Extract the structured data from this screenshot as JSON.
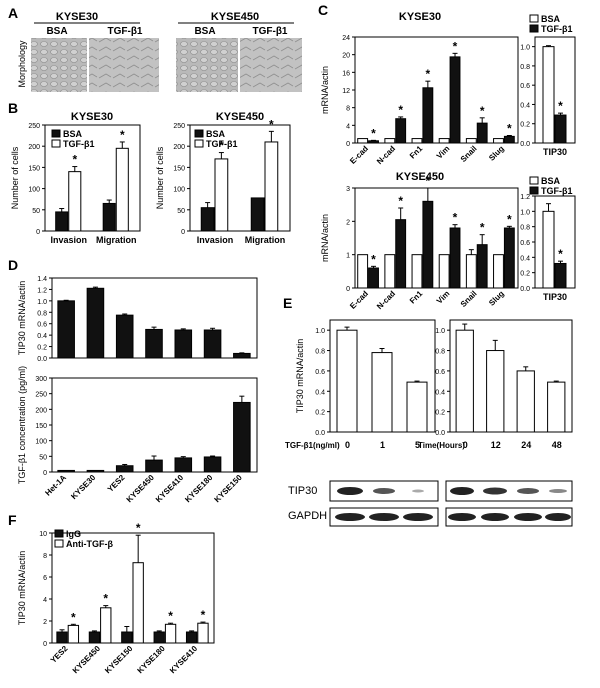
{
  "panels": {
    "A": "A",
    "B": "B",
    "C": "C",
    "D": "D",
    "E": "E",
    "F": "F"
  },
  "colors": {
    "black": "#111111",
    "white": "#ffffff",
    "frame": "#000000"
  },
  "panelA": {
    "morphology_label": "Morphology",
    "cell_lines": [
      "KYSE30",
      "KYSE450"
    ],
    "treatments": [
      "BSA",
      "TGF-β1"
    ]
  },
  "legend_bsa": "BSA",
  "legend_tgf": "TGF-β1",
  "star": "*",
  "chart_data": [
    {
      "id": "B1",
      "type": "bar",
      "title": "KYSE30",
      "ylabel": "Number of cells",
      "categories": [
        "Invasion",
        "Migration"
      ],
      "ylim": [
        0,
        250
      ],
      "yticks": [
        "0",
        "50",
        "100",
        "150",
        "200",
        "250"
      ],
      "series": [
        {
          "name": "BSA",
          "values": [
            45,
            65
          ],
          "errors": [
            8,
            8
          ]
        },
        {
          "name": "TGF-β1",
          "values": [
            140,
            195
          ],
          "errors": [
            12,
            15
          ]
        }
      ],
      "stars": [
        false,
        true,
        false,
        true
      ]
    },
    {
      "id": "B2",
      "type": "bar",
      "title": "KYSE450",
      "ylabel": "Number of cells",
      "categories": [
        "Invasion",
        "Migration"
      ],
      "ylim": [
        0,
        250
      ],
      "yticks": [
        "0",
        "50",
        "100",
        "150",
        "200",
        "250"
      ],
      "series": [
        {
          "name": "BSA",
          "values": [
            55,
            78
          ],
          "errors": [
            12,
            0
          ]
        },
        {
          "name": "TGF-β1",
          "values": [
            170,
            210
          ],
          "errors": [
            15,
            25
          ]
        }
      ],
      "stars": [
        false,
        true,
        false,
        true
      ]
    },
    {
      "id": "C1",
      "type": "bar",
      "title": "KYSE30",
      "ylabel": "mRNA/actin",
      "categories": [
        "E-cad",
        "N-cad",
        "Fn1",
        "Vim",
        "Snail",
        "Slug"
      ],
      "yticks": [
        "0",
        "4",
        "8",
        "12",
        "16",
        "20",
        "24"
      ],
      "ytick_label_top": "24",
      "series": [
        {
          "name": "BSA",
          "values": [
            1,
            1,
            1,
            1,
            1,
            1
          ],
          "errors": [
            0,
            0,
            0,
            0,
            0,
            0
          ]
        },
        {
          "name": "TGF-β1",
          "values": [
            0.5,
            5.5,
            12.5,
            19.5,
            4.5,
            1.5
          ],
          "errors": [
            0.1,
            0.4,
            1.5,
            0.8,
            1.2,
            0.2
          ]
        }
      ],
      "stars": [
        false,
        true,
        false,
        true,
        false,
        true,
        false,
        true,
        false,
        true,
        false,
        true
      ]
    },
    {
      "id": "C1b",
      "type": "bar",
      "ylabel": "",
      "categories": [
        "TIP30"
      ],
      "ylim": [
        0,
        1.1
      ],
      "yticks": [
        "0.0",
        "0.2",
        "0.4",
        "0.6",
        "0.8",
        "1.0"
      ],
      "series": [
        {
          "name": "BSA",
          "values": [
            1.0
          ],
          "errors": [
            0.01
          ]
        },
        {
          "name": "TGF-β1",
          "values": [
            0.29
          ],
          "errors": [
            0.02
          ]
        }
      ],
      "stars": [
        false,
        true
      ]
    },
    {
      "id": "C2",
      "type": "bar",
      "title": "KYSE450",
      "ylabel": "mRNA/actin",
      "categories": [
        "E-cad",
        "N-cad",
        "Fn1",
        "Vim",
        "Snail",
        "Slug"
      ],
      "ylim": [
        0,
        3
      ],
      "yticks": [
        "0",
        "1",
        "2",
        "3"
      ],
      "series": [
        {
          "name": "BSA",
          "values": [
            1,
            1,
            1,
            1,
            1,
            1
          ],
          "errors": [
            0,
            0,
            0,
            0,
            0.15,
            0
          ]
        },
        {
          "name": "TGF-β1",
          "values": [
            0.6,
            2.05,
            2.6,
            1.8,
            1.3,
            1.8
          ],
          "errors": [
            0.05,
            0.35,
            0.4,
            0.1,
            0.3,
            0.05
          ]
        }
      ],
      "stars": [
        false,
        true,
        false,
        true,
        false,
        true,
        false,
        true,
        false,
        true,
        false,
        true
      ]
    },
    {
      "id": "C2b",
      "type": "bar",
      "ylabel": "",
      "categories": [
        "TIP30"
      ],
      "ylim": [
        0,
        1.2
      ],
      "yticks": [
        "0.0",
        "0.2",
        "0.4",
        "0.6",
        "0.8",
        "1.0",
        "1.2"
      ],
      "series": [
        {
          "name": "BSA",
          "values": [
            1.0
          ],
          "errors": [
            0.1
          ]
        },
        {
          "name": "TGF-β1",
          "values": [
            0.32
          ],
          "errors": [
            0.03
          ]
        }
      ],
      "stars": [
        false,
        true
      ]
    },
    {
      "id": "D1",
      "type": "bar",
      "ylabel": "TIP30 mRNA/actin",
      "categories": [
        "Het-1A",
        "KYSE30",
        "YES2",
        "KYSE450",
        "KYSE410",
        "KYSE180",
        "KYSE150"
      ],
      "ylim": [
        0,
        1.4
      ],
      "yticks": [
        "0.0",
        "0.2",
        "0.4",
        "0.6",
        "0.8",
        "1.0",
        "1.2",
        "1.4"
      ],
      "series": [
        {
          "name": "",
          "values": [
            1.0,
            1.22,
            0.75,
            0.5,
            0.49,
            0.49,
            0.08
          ],
          "errors": [
            0.01,
            0.02,
            0.02,
            0.04,
            0.02,
            0.03,
            0.01
          ]
        }
      ]
    },
    {
      "id": "D2",
      "type": "bar",
      "ylabel": "TGF-β1 concentration (pg/ml)",
      "categories": [
        "Het-1A",
        "KYSE30",
        "YES2",
        "KYSE450",
        "KYSE410",
        "KYSE180",
        "KYSE150"
      ],
      "ylim": [
        0,
        300
      ],
      "yticks": [
        "0",
        "50",
        "100",
        "150",
        "200",
        "250",
        "300"
      ],
      "series": [
        {
          "name": "",
          "values": [
            5,
            5,
            20,
            38,
            45,
            48,
            222
          ],
          "errors": [
            0,
            0,
            4,
            13,
            4,
            3,
            20
          ]
        }
      ]
    },
    {
      "id": "E1",
      "type": "bar",
      "ylabel": "TIP30 mRNA/actin",
      "xlabel": "TGF-β1(ng/ml)",
      "categories": [
        "0",
        "1",
        "5"
      ],
      "ylim": [
        0,
        1.1
      ],
      "yticks": [
        "0.0",
        "0.2",
        "0.4",
        "0.6",
        "0.8",
        "1.0"
      ],
      "series": [
        {
          "name": "",
          "values": [
            1.0,
            0.78,
            0.49
          ],
          "errors": [
            0.03,
            0.04,
            0.01
          ]
        }
      ]
    },
    {
      "id": "E2",
      "type": "bar",
      "ylabel": "",
      "xlabel": "Time(Hours)",
      "categories": [
        "0",
        "12",
        "24",
        "48"
      ],
      "ylim": [
        0,
        1.1
      ],
      "yticks": [
        "0.0",
        "0.2",
        "0.4",
        "0.6",
        "0.8",
        "1.0"
      ],
      "series": [
        {
          "name": "",
          "values": [
            1.0,
            0.8,
            0.6,
            0.49
          ],
          "errors": [
            0.06,
            0.1,
            0.04,
            0.01
          ]
        }
      ]
    },
    {
      "id": "F",
      "type": "bar",
      "ylabel": "TIP30 mRNA/actin",
      "categories": [
        "YES2",
        "KYSE450",
        "KYSE150",
        "KYSE180",
        "KYSE410"
      ],
      "ylim": [
        0,
        10
      ],
      "yticks": [
        "0",
        "2",
        "4",
        "6",
        "8",
        "10"
      ],
      "series": [
        {
          "name": "IgG",
          "values": [
            1,
            1,
            1,
            1,
            1
          ],
          "errors": [
            0.2,
            0.1,
            0.5,
            0.1,
            0.1
          ]
        },
        {
          "name": "Anti-TGF-β",
          "values": [
            1.6,
            3.2,
            7.3,
            1.7,
            1.8
          ],
          "errors": [
            0.1,
            0.2,
            2.5,
            0.1,
            0.1
          ]
        }
      ],
      "stars": [
        false,
        true,
        false,
        true,
        false,
        true,
        false,
        true,
        false,
        true
      ]
    }
  ],
  "blots": {
    "tip30": "TIP30",
    "gapdh": "GAPDH"
  }
}
